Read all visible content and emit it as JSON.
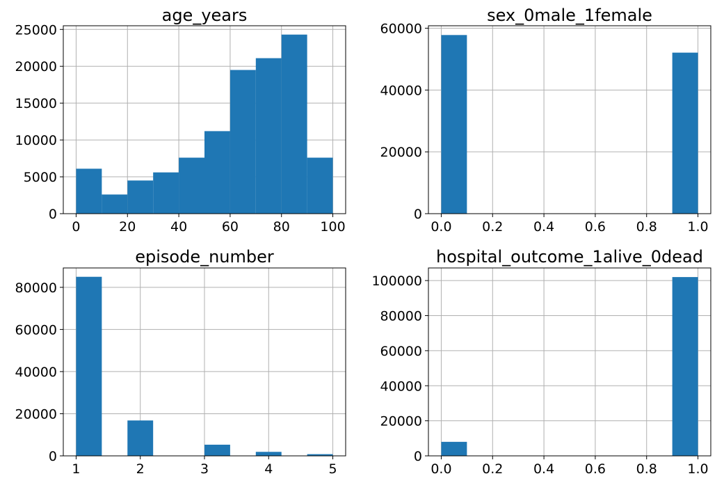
{
  "chart_data": [
    {
      "type": "bar",
      "title": "age_years",
      "bins": [
        [
          0,
          10
        ],
        [
          10,
          20
        ],
        [
          20,
          30
        ],
        [
          30,
          40
        ],
        [
          40,
          50
        ],
        [
          50,
          60
        ],
        [
          60,
          70
        ],
        [
          70,
          80
        ],
        [
          80,
          90
        ],
        [
          90,
          100
        ]
      ],
      "values": [
        6100,
        2600,
        4500,
        5600,
        7600,
        11200,
        19500,
        21100,
        24300,
        7600
      ],
      "xlim": [
        -5,
        105
      ],
      "ylim": [
        0,
        25500
      ],
      "xticks": [
        0,
        20,
        40,
        60,
        80,
        100
      ],
      "xtick_labels": [
        "0",
        "20",
        "40",
        "60",
        "80",
        "100"
      ],
      "yticks": [
        0,
        5000,
        10000,
        15000,
        20000,
        25000
      ],
      "ytick_labels": [
        "0",
        "5000",
        "10000",
        "15000",
        "20000",
        "25000"
      ],
      "grid": true,
      "color": "#1f77b4"
    },
    {
      "type": "bar",
      "title": "sex_0male_1female",
      "bins": [
        [
          0,
          0.1
        ],
        [
          0.1,
          0.2
        ],
        [
          0.2,
          0.3
        ],
        [
          0.3,
          0.4
        ],
        [
          0.4,
          0.5
        ],
        [
          0.5,
          0.6
        ],
        [
          0.6,
          0.7
        ],
        [
          0.7,
          0.8
        ],
        [
          0.8,
          0.9
        ],
        [
          0.9,
          1.0
        ]
      ],
      "values": [
        57800,
        0,
        0,
        0,
        0,
        0,
        0,
        0,
        0,
        52100
      ],
      "xlim": [
        -0.05,
        1.05
      ],
      "ylim": [
        0,
        60800
      ],
      "xticks": [
        0,
        0.2,
        0.4,
        0.6,
        0.8,
        1.0
      ],
      "xtick_labels": [
        "0.0",
        "0.2",
        "0.4",
        "0.6",
        "0.8",
        "1.0"
      ],
      "yticks": [
        0,
        20000,
        40000,
        60000
      ],
      "ytick_labels": [
        "0",
        "20000",
        "40000",
        "60000"
      ],
      "grid": true,
      "color": "#1f77b4"
    },
    {
      "type": "bar",
      "title": "episode_number",
      "bins": [
        [
          1,
          1.4
        ],
        [
          1.4,
          1.8
        ],
        [
          1.8,
          2.2
        ],
        [
          2.2,
          2.6
        ],
        [
          2.6,
          3.0
        ],
        [
          3.0,
          3.4
        ],
        [
          3.4,
          3.8
        ],
        [
          3.8,
          4.2
        ],
        [
          4.2,
          4.6
        ],
        [
          4.6,
          5.0
        ]
      ],
      "values": [
        85000,
        0,
        16800,
        0,
        0,
        5300,
        0,
        1900,
        0,
        800
      ],
      "xlim": [
        0.8,
        5.2
      ],
      "ylim": [
        0,
        89200
      ],
      "xticks": [
        1,
        2,
        3,
        4,
        5
      ],
      "xtick_labels": [
        "1",
        "2",
        "3",
        "4",
        "5"
      ],
      "yticks": [
        0,
        20000,
        40000,
        60000,
        80000
      ],
      "ytick_labels": [
        "0",
        "20000",
        "40000",
        "60000",
        "80000"
      ],
      "grid": true,
      "color": "#1f77b4"
    },
    {
      "type": "bar",
      "title": "hospital_outcome_1alive_0dead",
      "bins": [
        [
          0,
          0.1
        ],
        [
          0.1,
          0.2
        ],
        [
          0.2,
          0.3
        ],
        [
          0.3,
          0.4
        ],
        [
          0.4,
          0.5
        ],
        [
          0.5,
          0.6
        ],
        [
          0.6,
          0.7
        ],
        [
          0.7,
          0.8
        ],
        [
          0.8,
          0.9
        ],
        [
          0.9,
          1.0
        ]
      ],
      "values": [
        8000,
        0,
        0,
        0,
        0,
        0,
        0,
        0,
        0,
        102000
      ],
      "xlim": [
        -0.05,
        1.05
      ],
      "ylim": [
        0,
        107200
      ],
      "xticks": [
        0,
        0.2,
        0.4,
        0.6,
        0.8,
        1.0
      ],
      "xtick_labels": [
        "0.0",
        "0.2",
        "0.4",
        "0.6",
        "0.8",
        "1.0"
      ],
      "yticks": [
        0,
        20000,
        40000,
        60000,
        80000,
        100000
      ],
      "ytick_labels": [
        "0",
        "20000",
        "40000",
        "60000",
        "80000",
        "100000"
      ],
      "grid": true,
      "color": "#1f77b4"
    }
  ]
}
